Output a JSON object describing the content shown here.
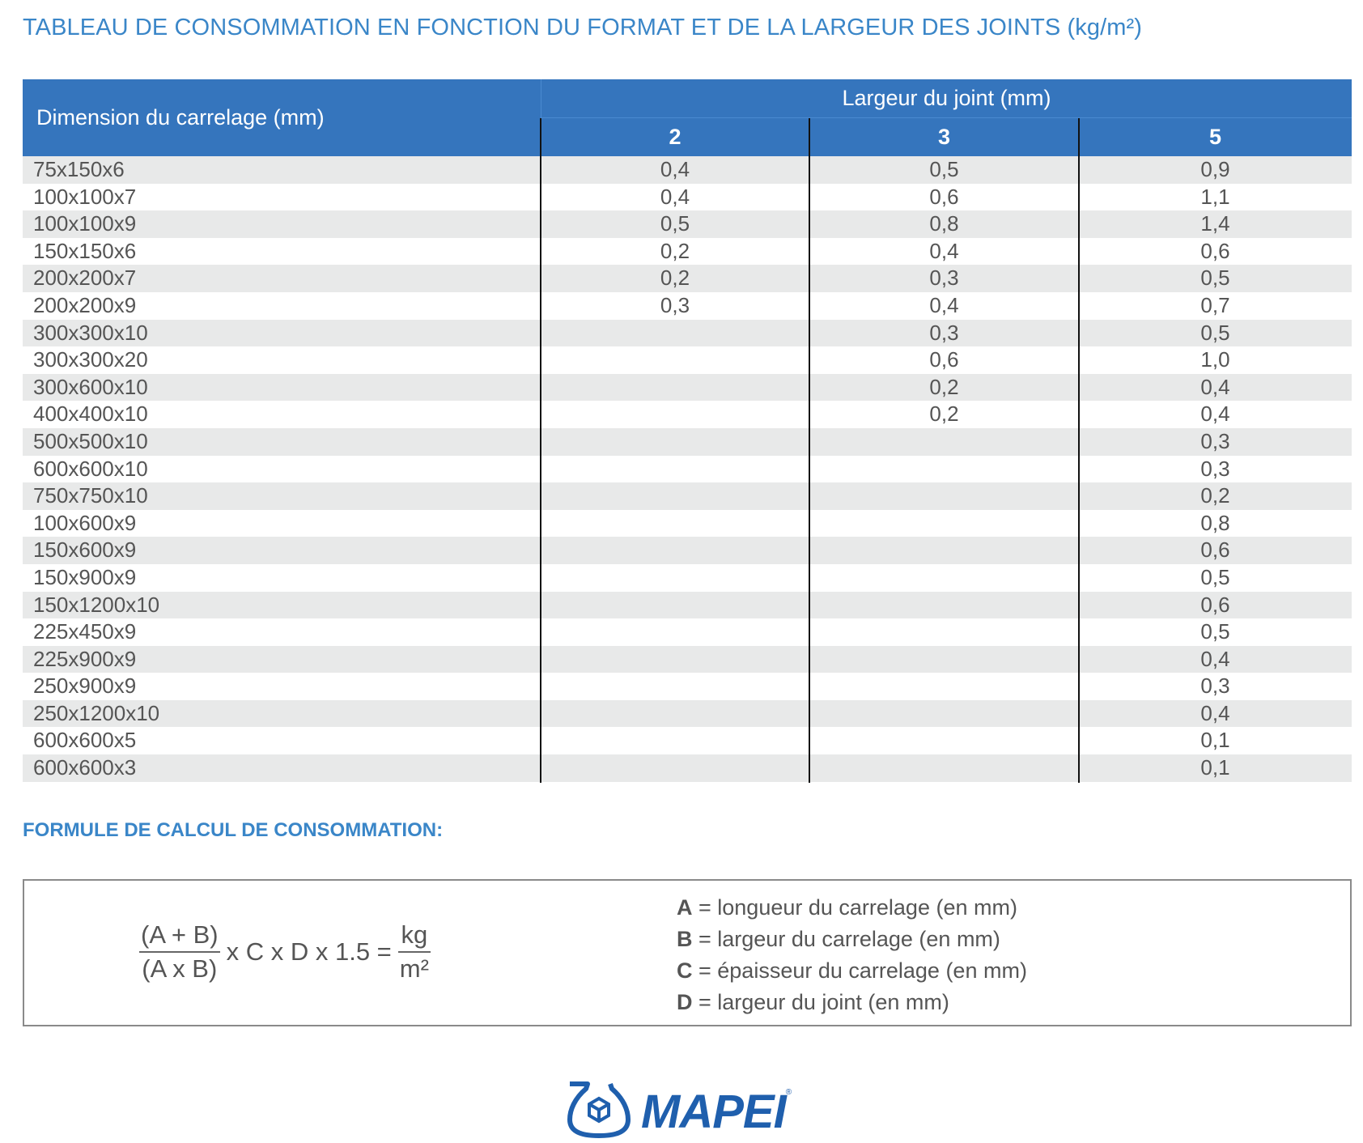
{
  "title": "TABLEAU DE CONSOMMATION EN FONCTION DU FORMAT ET DE LA LARGEUR DES JOINTS (kg/m²)",
  "table": {
    "dimension_header": "Dimension du carrelage (mm)",
    "group_header": "Largeur du joint (mm)",
    "columns": [
      "2",
      "3",
      "5"
    ],
    "rows": [
      {
        "dim": "75x150x6",
        "v2": "0,4",
        "v3": "0,5",
        "v5": "0,9"
      },
      {
        "dim": "100x100x7",
        "v2": "0,4",
        "v3": "0,6",
        "v5": "1,1"
      },
      {
        "dim": "100x100x9",
        "v2": "0,5",
        "v3": "0,8",
        "v5": "1,4"
      },
      {
        "dim": "150x150x6",
        "v2": "0,2",
        "v3": "0,4",
        "v5": "0,6"
      },
      {
        "dim": "200x200x7",
        "v2": "0,2",
        "v3": "0,3",
        "v5": "0,5"
      },
      {
        "dim": "200x200x9",
        "v2": "0,3",
        "v3": "0,4",
        "v5": "0,7"
      },
      {
        "dim": "300x300x10",
        "v2": "",
        "v3": "0,3",
        "v5": "0,5"
      },
      {
        "dim": "300x300x20",
        "v2": "",
        "v3": "0,6",
        "v5": "1,0"
      },
      {
        "dim": "300x600x10",
        "v2": "",
        "v3": "0,2",
        "v5": "0,4"
      },
      {
        "dim": "400x400x10",
        "v2": "",
        "v3": "0,2",
        "v5": "0,4"
      },
      {
        "dim": "500x500x10",
        "v2": "",
        "v3": "",
        "v5": "0,3"
      },
      {
        "dim": "600x600x10",
        "v2": "",
        "v3": "",
        "v5": "0,3"
      },
      {
        "dim": "750x750x10",
        "v2": "",
        "v3": "",
        "v5": "0,2"
      },
      {
        "dim": "100x600x9",
        "v2": "",
        "v3": "",
        "v5": "0,8"
      },
      {
        "dim": "150x600x9",
        "v2": "",
        "v3": "",
        "v5": "0,6"
      },
      {
        "dim": "150x900x9",
        "v2": "",
        "v3": "",
        "v5": "0,5"
      },
      {
        "dim": "150x1200x10",
        "v2": "",
        "v3": "",
        "v5": "0,6"
      },
      {
        "dim": "225x450x9",
        "v2": "",
        "v3": "",
        "v5": "0,5"
      },
      {
        "dim": "225x900x9",
        "v2": "",
        "v3": "",
        "v5": "0,4"
      },
      {
        "dim": "250x900x9",
        "v2": "",
        "v3": "",
        "v5": "0,3"
      },
      {
        "dim": "250x1200x10",
        "v2": "",
        "v3": "",
        "v5": "0,4"
      },
      {
        "dim": "600x600x5",
        "v2": "",
        "v3": "",
        "v5": "0,1"
      },
      {
        "dim": "600x600x3",
        "v2": "",
        "v3": "",
        "v5": "0,1"
      }
    ]
  },
  "formula": {
    "title": "FORMULE DE CALCUL DE CONSOMMATION:",
    "numerator": "(A + B)",
    "denominator": "(A x B)",
    "middle": "x C x D x 1.5 =",
    "result_num": "kg",
    "result_den": "m²",
    "legend": [
      {
        "key": "A",
        "text": " = longueur du carrelage (en mm)"
      },
      {
        "key": "B",
        "text": " = largeur du carrelage (en mm)"
      },
      {
        "key": "C",
        "text": " = épaisseur du carrelage (en mm)"
      },
      {
        "key": "D",
        "text": " = largeur du joint (en mm)"
      }
    ]
  },
  "logo": {
    "name": "MAPEI",
    "registered": "®"
  },
  "colors": {
    "title_blue": "#3a86c8",
    "header_blue": "#3575bd",
    "row_gray": "#e8e9e9",
    "logo_blue": "#1f5fad"
  }
}
